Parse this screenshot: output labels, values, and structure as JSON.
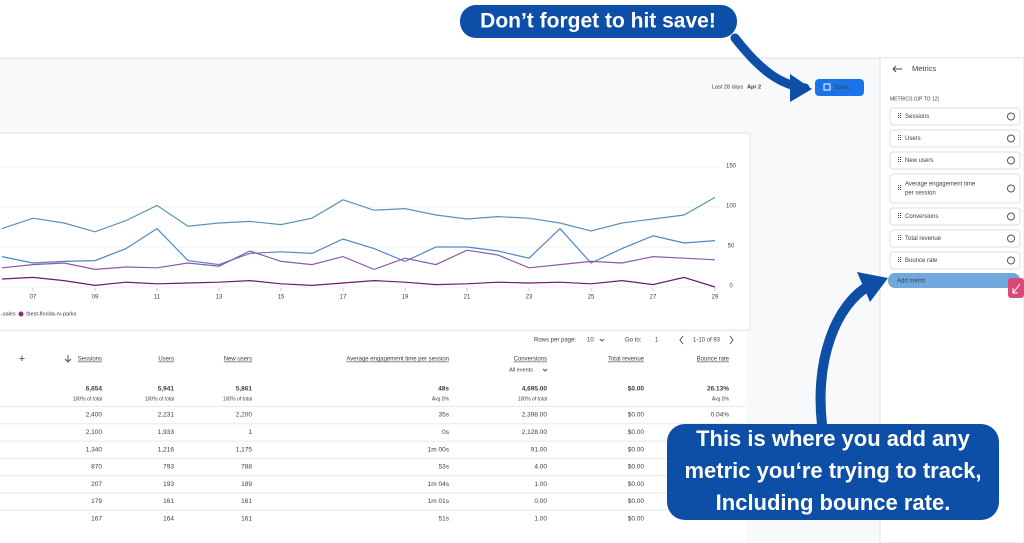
{
  "header": {
    "date_range_label": "Last 28 days",
    "date_range_value": "Apr 2",
    "save_button": "Save..."
  },
  "chart": {
    "type": "line",
    "ylim": [
      0,
      150
    ],
    "yticks": [
      0,
      50,
      100,
      150
    ],
    "xlim": [
      6,
      29
    ],
    "xticks": [
      {
        "value": 7,
        "label": "07"
      },
      {
        "value": 9,
        "label": "09"
      },
      {
        "value": 11,
        "label": "11"
      },
      {
        "value": 13,
        "label": "13"
      },
      {
        "value": 15,
        "label": "15"
      },
      {
        "value": 17,
        "label": "17"
      },
      {
        "value": 19,
        "label": "19"
      },
      {
        "value": 21,
        "label": "21"
      },
      {
        "value": 23,
        "label": "23"
      },
      {
        "value": 25,
        "label": "25"
      },
      {
        "value": 27,
        "label": "27"
      },
      {
        "value": 29,
        "label": "29"
      }
    ],
    "x": [
      6,
      7,
      8,
      9,
      10,
      11,
      12,
      13,
      14,
      15,
      16,
      17,
      18,
      19,
      20,
      21,
      22,
      23,
      24,
      25,
      26,
      27,
      28,
      29
    ],
    "series": [
      {
        "color": "#5a93b5",
        "values": [
          73,
          86,
          80,
          69,
          83,
          102,
          76,
          80,
          82,
          78,
          86,
          109,
          96,
          98,
          90,
          85,
          88,
          86,
          80,
          70,
          80,
          85,
          90,
          112
        ]
      },
      {
        "color": "#4f86c6",
        "values": [
          38,
          30,
          32,
          33,
          48,
          73,
          33,
          28,
          42,
          44,
          42,
          60,
          48,
          32,
          50,
          50,
          45,
          36,
          73,
          30,
          48,
          64,
          55,
          58
        ]
      },
      {
        "color": "#8a5aa8",
        "values": [
          24,
          28,
          30,
          22,
          25,
          24,
          30,
          26,
          45,
          32,
          28,
          38,
          22,
          36,
          28,
          46,
          40,
          24,
          28,
          32,
          30,
          38,
          36,
          34
        ]
      },
      {
        "color": "#6a1b6a",
        "values": [
          10,
          12,
          8,
          2,
          6,
          4,
          5,
          6,
          8,
          4,
          2,
          5,
          8,
          6,
          3,
          4,
          6,
          5,
          6,
          4,
          8,
          3,
          12,
          0
        ]
      }
    ],
    "legend": [
      {
        "label": "-sales"
      },
      {
        "label": "/best-florida-rv-parks",
        "color": "#8a2a8a"
      }
    ]
  },
  "pagination": {
    "rows_label": "Rows per page:",
    "rows_value": "10",
    "goto_label": "Go to:",
    "goto_value": "1",
    "range": "1-10 of 93"
  },
  "table": {
    "columns": [
      "Sessions",
      "Users",
      "New users",
      "Average engagement time per session",
      "Conversions",
      "Total revenue",
      "Bounce rate"
    ],
    "conversions_filter": "All events",
    "totals": [
      {
        "value": "6,654",
        "sub": "100% of total"
      },
      {
        "value": "5,941",
        "sub": "100% of total"
      },
      {
        "value": "5,861",
        "sub": "100% of total"
      },
      {
        "value": "48s",
        "sub": "Avg 0%"
      },
      {
        "value": "4,695.00",
        "sub": "100% of total"
      },
      {
        "value": "$0.00"
      },
      {
        "value": "26.13%",
        "sub": "Avg 0%"
      }
    ],
    "rows": [
      [
        "2,400",
        "2,231",
        "2,200",
        "35s",
        "2,398.00",
        "$0.00",
        "0.04%"
      ],
      [
        "2,100",
        "1,933",
        "1",
        "0s",
        "2,128.00",
        "$0.00"
      ],
      [
        "1,340",
        "1,216",
        "1,175",
        "1m 00s",
        "91.00",
        "$0.00"
      ],
      [
        "870",
        "793",
        "788",
        "53s",
        "4.00",
        "$0.00"
      ],
      [
        "207",
        "193",
        "189",
        "1m 04s",
        "1.00",
        "$0.00"
      ],
      [
        "179",
        "161",
        "161",
        "1m 01s",
        "0.00",
        "$0.00"
      ],
      [
        "167",
        "164",
        "161",
        "51s",
        "1.00",
        "$0.00"
      ]
    ]
  },
  "metrics_panel": {
    "title": "Metrics",
    "section_label": "METRICS (UP TO 12)",
    "metrics": [
      [
        "Sessions"
      ],
      [
        "Users"
      ],
      [
        "New users"
      ],
      [
        "Average engagement time",
        "per session"
      ],
      [
        "Conversions"
      ],
      [
        "Total revenue"
      ],
      [
        "Bounce rate"
      ]
    ],
    "add_metric": "Add metric"
  },
  "annotations": {
    "top": "Don’t forget to hit save!",
    "bottom": [
      "This is where you add any",
      "metric you‘re trying to track,",
      "Including bounce rate."
    ]
  }
}
